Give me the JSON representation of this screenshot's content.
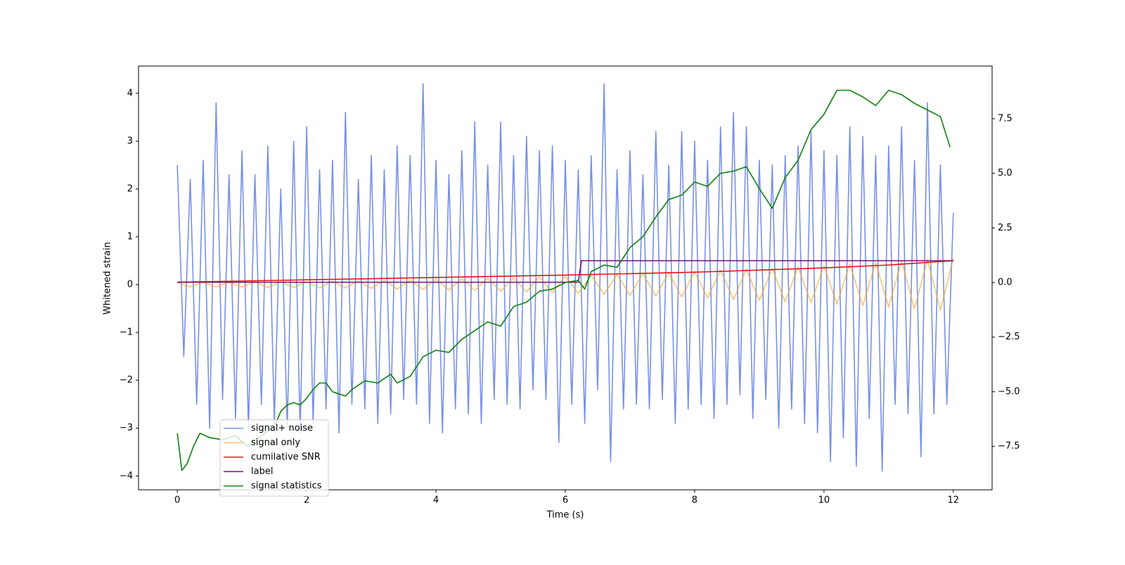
{
  "chart_data": {
    "type": "line",
    "xlabel": "Time (s)",
    "ylabel": "Whitened strain",
    "xlim": [
      -0.6,
      12.6
    ],
    "ylim": [
      -4.29,
      4.57
    ],
    "y2lim": [
      -9.49,
      9.91
    ],
    "xticks": [
      0,
      2,
      4,
      6,
      8,
      10,
      12
    ],
    "yticks": [
      {
        "value": -4,
        "label": "−4"
      },
      {
        "value": -3,
        "label": "−3"
      },
      {
        "value": -2,
        "label": "−2"
      },
      {
        "value": -1,
        "label": "−1"
      },
      0,
      1,
      2,
      3,
      4
    ],
    "y2ticks": [
      {
        "value": -7.5,
        "label": "−7.5"
      },
      {
        "value": -5,
        "label": "−5.0"
      },
      {
        "value": -2.5,
        "label": "−2.5"
      },
      {
        "value": 0,
        "label": "0.0"
      },
      {
        "value": 2.5,
        "label": "2.5"
      },
      {
        "value": 5,
        "label": "5.0"
      },
      {
        "value": 7.5,
        "label": "7.5"
      }
    ],
    "legend": "lower left",
    "series": [
      {
        "name": "signal+ noise",
        "color": "#7790e8",
        "x": [
          0,
          0.1,
          0.2,
          0.3,
          0.4,
          0.5,
          0.6,
          0.7,
          0.8,
          0.9,
          1,
          1.1,
          1.2,
          1.3,
          1.4,
          1.5,
          1.6,
          1.7,
          1.8,
          1.9,
          2,
          2.1,
          2.2,
          2.3,
          2.4,
          2.5,
          2.6,
          2.7,
          2.8,
          2.9,
          3,
          3.1,
          3.2,
          3.3,
          3.4,
          3.5,
          3.6,
          3.7,
          3.8,
          3.9,
          4,
          4.1,
          4.2,
          4.3,
          4.4,
          4.5,
          4.6,
          4.7,
          4.8,
          4.9,
          5,
          5.1,
          5.2,
          5.3,
          5.4,
          5.5,
          5.6,
          5.7,
          5.8,
          5.9,
          6,
          6.1,
          6.2,
          6.3,
          6.4,
          6.5,
          6.6,
          6.7,
          6.8,
          6.9,
          7,
          7.1,
          7.2,
          7.3,
          7.4,
          7.5,
          7.6,
          7.7,
          7.8,
          7.9,
          8,
          8.1,
          8.2,
          8.3,
          8.4,
          8.5,
          8.6,
          8.7,
          8.8,
          8.9,
          9,
          9.1,
          9.2,
          9.3,
          9.4,
          9.5,
          9.6,
          9.7,
          9.8,
          9.9,
          10,
          10.1,
          10.2,
          10.3,
          10.4,
          10.5,
          10.6,
          10.7,
          10.8,
          10.9,
          11,
          11.1,
          11.2,
          11.3,
          11.4,
          11.5,
          11.6,
          11.7,
          11.8,
          11.9,
          12
        ],
        "values": [
          2.5,
          -1.5,
          2.2,
          -2.5,
          2.6,
          -3.0,
          3.8,
          -2.4,
          2.3,
          -2.8,
          2.8,
          -3.0,
          2.3,
          -2.5,
          2.9,
          -2.9,
          2.0,
          -3.0,
          3.0,
          -3.1,
          3.3,
          -2.9,
          2.4,
          -2.6,
          2.6,
          -3.1,
          3.6,
          -2.5,
          2.2,
          -2.6,
          2.7,
          -2.9,
          2.4,
          -2.7,
          2.9,
          -2.4,
          2.7,
          -2.5,
          4.2,
          -2.9,
          2.6,
          -3.1,
          2.3,
          -2.6,
          2.8,
          -2.7,
          3.4,
          -2.9,
          2.5,
          -2.4,
          3.4,
          -2.5,
          2.7,
          -2.6,
          3.1,
          -2.2,
          2.8,
          -2.4,
          2.9,
          -3.3,
          2.6,
          -2.5,
          2.4,
          -2.9,
          2.7,
          -2.2,
          4.2,
          -3.7,
          2.4,
          -2.6,
          2.8,
          -2.5,
          2.3,
          -2.6,
          3.2,
          -2.4,
          2.5,
          -2.9,
          3.2,
          -2.6,
          3.0,
          -2.5,
          2.6,
          -2.8,
          3.3,
          -2.5,
          3.6,
          -2.3,
          3.3,
          -2.8,
          2.6,
          -2.4,
          2.5,
          -3.0,
          2.7,
          -2.6,
          2.9,
          -2.9,
          3.2,
          -3.1,
          2.8,
          -3.7,
          2.7,
          -3.2,
          3.3,
          -3.8,
          3.1,
          -2.8,
          2.7,
          -3.9,
          2.9,
          -2.5,
          3.3,
          -2.7,
          2.6,
          -3.6,
          3.8,
          -2.7,
          2.5,
          -2.5,
          1.5
        ]
      },
      {
        "name": "signal only",
        "color": "#f5a623",
        "x": [
          0,
          0.2,
          0.4,
          0.6,
          0.8,
          1,
          1.2,
          1.4,
          1.6,
          1.8,
          2,
          2.2,
          2.4,
          2.6,
          2.8,
          3,
          3.2,
          3.4,
          3.6,
          3.8,
          4,
          4.2,
          4.4,
          4.6,
          4.8,
          5,
          5.2,
          5.4,
          5.6,
          5.8,
          6,
          6.2,
          6.4,
          6.6,
          6.8,
          7,
          7.2,
          7.4,
          7.6,
          7.8,
          8,
          8.2,
          8.4,
          8.6,
          8.8,
          9,
          9.2,
          9.4,
          9.6,
          9.8,
          10,
          10.2,
          10.4,
          10.6,
          10.8,
          11,
          11.2,
          11.4,
          11.6,
          11.8,
          12
        ],
        "values": [
          0.05,
          -0.05,
          0.05,
          -0.05,
          0.05,
          -0.05,
          0.06,
          -0.06,
          0.06,
          -0.06,
          0.06,
          -0.07,
          0.07,
          -0.07,
          0.08,
          -0.08,
          0.09,
          -0.09,
          0.09,
          -0.1,
          0.11,
          -0.11,
          0.12,
          -0.12,
          0.13,
          -0.14,
          0.14,
          -0.15,
          0.16,
          -0.17,
          0.18,
          -0.18,
          0.19,
          -0.2,
          0.21,
          -0.22,
          0.23,
          -0.24,
          0.25,
          -0.26,
          0.27,
          -0.28,
          0.3,
          -0.31,
          0.32,
          -0.33,
          0.34,
          -0.36,
          0.37,
          -0.38,
          0.4,
          -0.41,
          0.43,
          -0.44,
          0.46,
          -0.47,
          0.49,
          -0.5,
          0.52,
          -0.53,
          0.55
        ]
      },
      {
        "name": "cumilative SNR",
        "color": "#ee1111",
        "x": [
          0,
          2,
          4,
          6,
          8,
          10,
          11,
          12
        ],
        "values": [
          0.05,
          0.1,
          0.15,
          0.2,
          0.26,
          0.35,
          0.41,
          0.5
        ]
      },
      {
        "name": "label",
        "color": "#7a0d7a",
        "x": [
          0,
          6.2,
          6.25,
          12
        ],
        "values": [
          0.05,
          0.05,
          0.5,
          0.5
        ]
      },
      {
        "name": "signal statistics",
        "color": "#0f800f",
        "axis": "y2",
        "x": [
          0,
          0.07,
          0.15,
          0.25,
          0.35,
          0.5,
          0.7,
          0.9,
          1,
          1.1,
          1.3,
          1.5,
          1.6,
          1.7,
          1.8,
          1.9,
          2,
          2.1,
          2.2,
          2.3,
          2.4,
          2.6,
          2.7,
          2.9,
          3.1,
          3.3,
          3.4,
          3.6,
          3.8,
          4,
          4.2,
          4.4,
          4.6,
          4.8,
          5,
          5.2,
          5.4,
          5.6,
          5.8,
          6,
          6.2,
          6.3,
          6.4,
          6.6,
          6.8,
          7,
          7.2,
          7.4,
          7.6,
          7.8,
          8,
          8.2,
          8.4,
          8.6,
          8.8,
          9,
          9.2,
          9.4,
          9.6,
          9.8,
          10,
          10.2,
          10.4,
          10.6,
          10.8,
          11,
          11.2,
          11.4,
          11.6,
          11.8,
          11.95
        ],
        "values": [
          -6.9,
          -8.6,
          -8.3,
          -7.5,
          -6.9,
          -7.1,
          -7.2,
          -7.0,
          -7.3,
          -7.5,
          -7.0,
          -6.6,
          -5.9,
          -5.6,
          -5.5,
          -5.6,
          -5.3,
          -4.9,
          -4.6,
          -4.6,
          -5.0,
          -5.2,
          -4.9,
          -4.5,
          -4.6,
          -4.2,
          -4.6,
          -4.3,
          -3.4,
          -3.1,
          -3.2,
          -2.6,
          -2.2,
          -1.8,
          -2.0,
          -1.1,
          -0.9,
          -0.4,
          -0.3,
          0.0,
          0.1,
          -0.3,
          0.5,
          0.8,
          0.7,
          1.6,
          2.1,
          3.0,
          3.8,
          4.0,
          4.6,
          4.4,
          5.0,
          5.1,
          5.3,
          4.3,
          3.4,
          4.8,
          5.6,
          7.0,
          7.7,
          8.8,
          8.8,
          8.5,
          8.1,
          8.8,
          8.6,
          8.2,
          7.9,
          7.6,
          6.2
        ]
      }
    ]
  }
}
